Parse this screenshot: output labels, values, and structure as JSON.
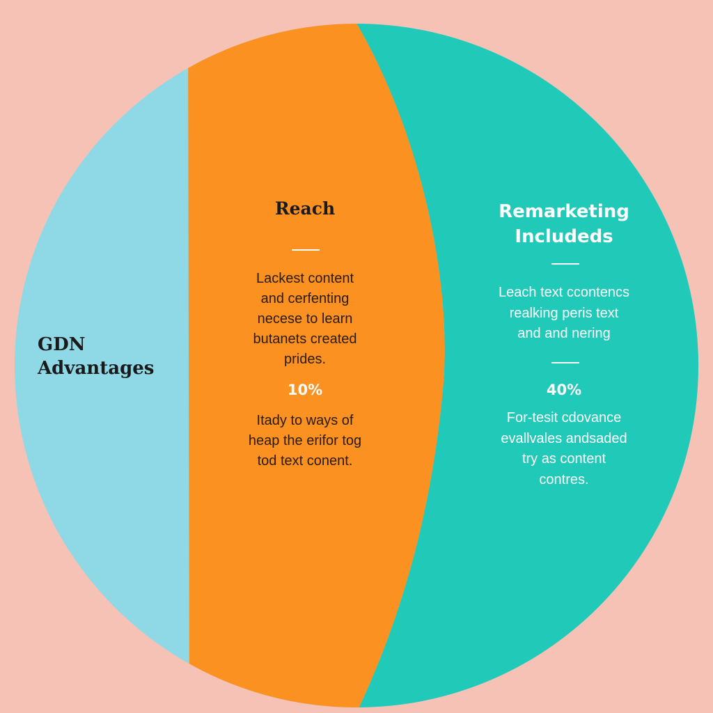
{
  "colors": {
    "background": "#f7c2b6",
    "segment_left": "#8fd8e6",
    "segment_middle": "#fb9120",
    "segment_right": "#20c9b8"
  },
  "left": {
    "title": "GDN\nAdvantages"
  },
  "middle": {
    "title": "Reach",
    "body_1": "Lackest content\nand cerfenting\nnecese to learn\nbutanets created\nprides.",
    "percent": "10%",
    "body_2": "Itady to ways of\nheap the erifor tog\ntod text conent."
  },
  "right": {
    "title": "Remarketing\nIncludeds",
    "body_1": "Leach text ccontencs\nrealking peris text\nand and nering",
    "percent": "40%",
    "body_2": "For-tesit cdovance\nevallvales andsaded\ntry as content\ncontres."
  }
}
